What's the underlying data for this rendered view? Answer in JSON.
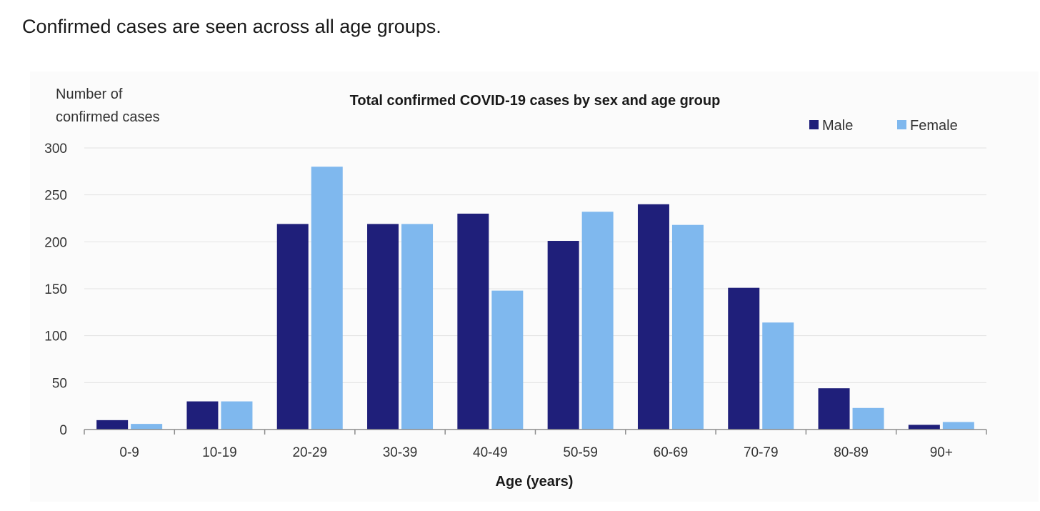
{
  "intro_text": "Confirmed cases are seen across all age groups.",
  "chart_data": {
    "type": "bar",
    "title": "Total confirmed COVID-19 cases by sex and age group",
    "ylabel_lines": [
      "Number of",
      "confirmed cases"
    ],
    "xlabel": "Age (years)",
    "categories": [
      "0-9",
      "10-19",
      "20-29",
      "30-39",
      "40-49",
      "50-59",
      "60-69",
      "70-79",
      "80-89",
      "90+"
    ],
    "series": [
      {
        "name": "Male",
        "color": "#1f1f7a",
        "values": [
          10,
          30,
          219,
          219,
          230,
          201,
          240,
          151,
          44,
          5
        ]
      },
      {
        "name": "Female",
        "color": "#7fb8ee",
        "values": [
          6,
          30,
          280,
          219,
          148,
          232,
          218,
          114,
          23,
          8
        ]
      }
    ],
    "yticks": [
      0,
      50,
      100,
      150,
      200,
      250,
      300
    ],
    "ylim": [
      0,
      300
    ],
    "grid": true,
    "legend_position": "top-right"
  }
}
